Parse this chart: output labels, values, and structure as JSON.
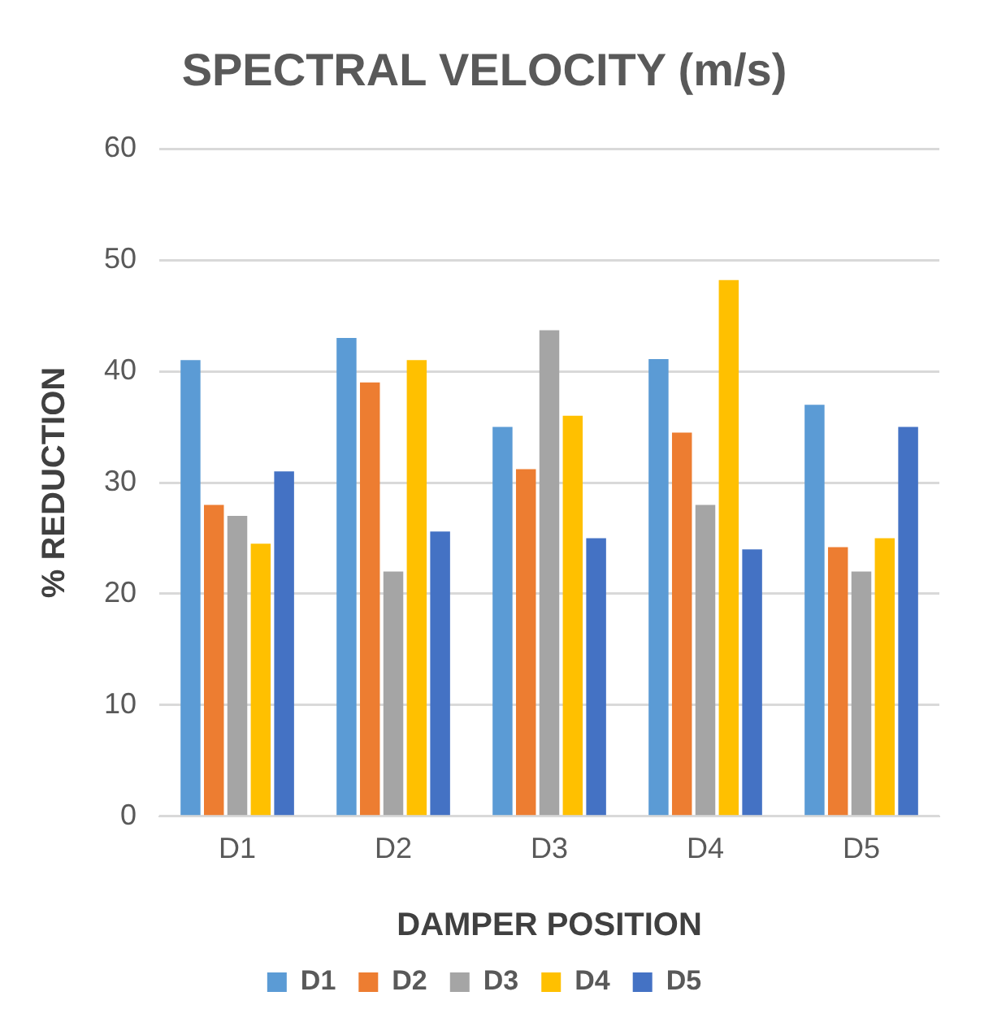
{
  "chart_data": {
    "type": "bar",
    "title": "SPECTRAL VELOCITY (m/s)",
    "xlabel": "DAMPER POSITION",
    "ylabel": "% REDUCTION",
    "categories": [
      "D1",
      "D2",
      "D3",
      "D4",
      "D5"
    ],
    "series": [
      {
        "name": "D1",
        "color": "#5b9bd5",
        "values": [
          41,
          43,
          35,
          41.1,
          37
        ]
      },
      {
        "name": "D2",
        "color": "#ed7d31",
        "values": [
          28,
          39,
          31.2,
          34.5,
          24.2
        ]
      },
      {
        "name": "D3",
        "color": "#a5a5a5",
        "values": [
          27,
          22,
          43.7,
          28,
          22
        ]
      },
      {
        "name": "D4",
        "color": "#ffc000",
        "values": [
          24.5,
          41,
          36,
          48.2,
          25
        ]
      },
      {
        "name": "D5",
        "color": "#4472c4",
        "values": [
          31,
          25.6,
          25,
          24,
          35
        ]
      }
    ],
    "ylim": [
      0,
      60
    ],
    "yticks": [
      0,
      10,
      20,
      30,
      40,
      50,
      60
    ],
    "grid": "y",
    "legend": "bottom"
  }
}
